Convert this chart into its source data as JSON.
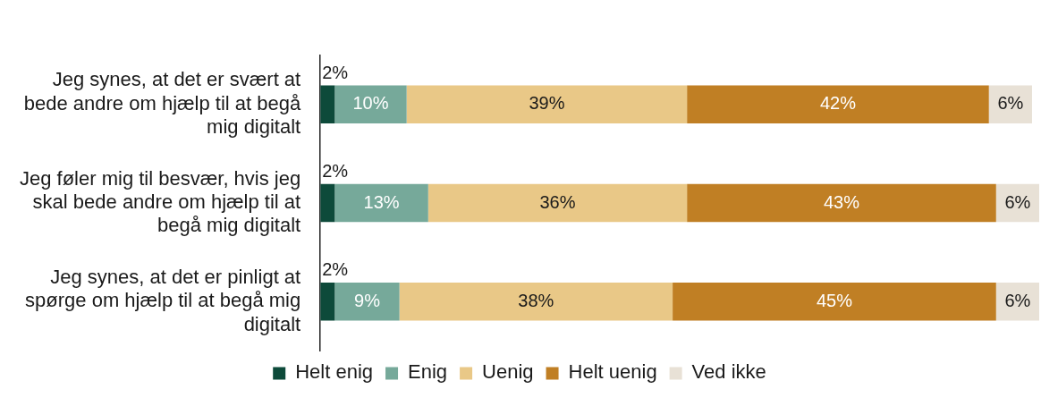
{
  "chart_data": {
    "type": "bar",
    "orientation": "horizontal",
    "stacked": true,
    "categories": [
      "Jeg synes, at det er svært at bede andre om hjælp til at begå mig digitalt",
      "Jeg føler mig til besvær, hvis jeg skal bede andre om hjælp til at begå mig digitalt",
      "Jeg synes, at det er pinligt at spørge om hjælp til at begå mig digitalt"
    ],
    "series": [
      {
        "name": "Helt enig",
        "color": "#0d4a3a",
        "values": [
          2,
          2,
          2
        ],
        "value_labels": [
          "2%",
          "2%",
          "2%"
        ]
      },
      {
        "name": "Enig",
        "color": "#76a99a",
        "values": [
          10,
          13,
          9
        ],
        "value_labels": [
          "10%",
          "13%",
          "9%"
        ]
      },
      {
        "name": "Uenig",
        "color": "#e9c887",
        "values": [
          39,
          36,
          38
        ],
        "value_labels": [
          "39%",
          "36%",
          "38%"
        ]
      },
      {
        "name": "Helt uenig",
        "color": "#c07f24",
        "values": [
          42,
          43,
          45
        ],
        "value_labels": [
          "42%",
          "43%",
          "45%"
        ]
      },
      {
        "name": "Ved ikke",
        "color": "#e8e1d6",
        "values": [
          6,
          6,
          6
        ],
        "value_labels": [
          "6%",
          "6%",
          "6%"
        ]
      }
    ],
    "xlim": [
      0,
      100
    ],
    "tick_labels": "y",
    "grid": false,
    "legend": "bottom"
  }
}
